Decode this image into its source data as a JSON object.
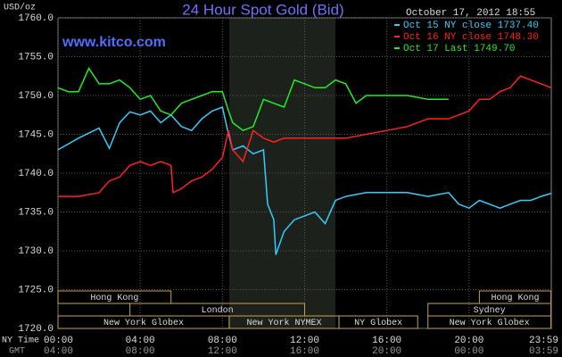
{
  "chart_data": {
    "type": "line",
    "title": "24 Hour Spot Gold (Bid)",
    "subtitle": "www.kitco.com",
    "timestamp": "October 17, 2012 18:55",
    "y_label": "USD/oz",
    "x_label": "NY Time",
    "x2_label": "GMT",
    "xlim": [
      0,
      24
    ],
    "xticks": [
      {
        "value": 0,
        "label": "00:00"
      },
      {
        "value": 4,
        "label": "04:00"
      },
      {
        "value": 8,
        "label": "08:00"
      },
      {
        "value": 12,
        "label": "12:00"
      },
      {
        "value": 16,
        "label": "16:00"
      },
      {
        "value": 20,
        "label": "20:00"
      },
      {
        "value": 23.983,
        "label": "23:59"
      }
    ],
    "x2ticks": [
      "04:00",
      "08:00",
      "12:00",
      "16:00",
      "20:00",
      "00:00",
      "03:59"
    ],
    "ylim": [
      1720,
      1760
    ],
    "yticks": [
      {
        "value": 1720,
        "label": "1720.0"
      },
      {
        "value": 1725,
        "label": "1725.0"
      },
      {
        "value": 1730,
        "label": "1730.0"
      },
      {
        "value": 1735,
        "label": "1735.0"
      },
      {
        "value": 1740,
        "label": "1740.0"
      },
      {
        "value": 1745,
        "label": "1745.0"
      },
      {
        "value": 1750,
        "label": "1750.0"
      },
      {
        "value": 1755,
        "label": "1755.0"
      },
      {
        "value": 1760,
        "label": "1760.0"
      }
    ],
    "grid": true,
    "highlight": [
      8.33,
      13.5
    ],
    "legend": "top-right",
    "series": [
      {
        "name": "Oct 15 NY close 1737.40",
        "color": "#33ccff",
        "x": [
          0,
          1,
          2,
          2.5,
          3,
          3.5,
          4,
          4.5,
          5,
          5.5,
          6,
          6.5,
          7,
          7.5,
          8,
          8.3,
          8.5,
          9,
          9.5,
          10,
          10.2,
          10.5,
          10.6,
          11,
          11.5,
          12,
          12.5,
          13,
          13.5,
          14,
          15,
          16,
          17,
          18,
          19,
          19.5,
          20,
          20.5,
          21,
          21.5,
          22,
          22.5,
          23,
          23.5,
          24
        ],
        "values": [
          1743,
          1744.5,
          1745.8,
          1743.2,
          1746.5,
          1747.9,
          1747.5,
          1748,
          1746.5,
          1747.5,
          1746,
          1745.5,
          1747,
          1748,
          1748.5,
          1745,
          1743,
          1743.5,
          1742.5,
          1743,
          1736,
          1734,
          1729.5,
          1732.5,
          1734,
          1734.5,
          1735,
          1733.5,
          1736.5,
          1737,
          1737.5,
          1737.5,
          1737.5,
          1737,
          1737.5,
          1736,
          1735.5,
          1736.5,
          1736,
          1735.5,
          1736,
          1736.5,
          1736.5,
          1737,
          1737.4
        ]
      },
      {
        "name": "Oct 16 NY close 1748.30",
        "color": "#ff2020",
        "x": [
          0,
          1,
          2,
          2.5,
          3,
          3.5,
          4,
          4.5,
          5,
          5.5,
          5.6,
          6,
          6.5,
          7,
          7.5,
          8,
          8.3,
          8.5,
          9,
          9.5,
          10,
          10.5,
          11,
          12,
          13,
          14,
          15,
          16,
          17,
          18,
          19,
          20,
          20.5,
          21,
          21.5,
          22,
          22.5,
          23,
          23.5,
          24
        ],
        "values": [
          1737,
          1737,
          1737.5,
          1739,
          1739.5,
          1741,
          1741.5,
          1741,
          1741.5,
          1741,
          1737.5,
          1738,
          1739,
          1739.5,
          1740.5,
          1742,
          1745.5,
          1743,
          1741.5,
          1745.5,
          1744.5,
          1744,
          1744.5,
          1744.5,
          1744.5,
          1744.5,
          1745,
          1745.5,
          1746,
          1747,
          1747,
          1748,
          1749.5,
          1749.5,
          1750.5,
          1751,
          1752.5,
          1752,
          1751.5,
          1751
        ]
      },
      {
        "name": "Oct 17 Last 1749.70",
        "color": "#22ee22",
        "x": [
          0,
          0.5,
          1,
          1.5,
          2,
          2.5,
          3,
          3.5,
          4,
          4.5,
          5,
          5.5,
          6,
          6.5,
          7,
          7.5,
          8,
          8.3,
          8.5,
          9,
          9.5,
          10,
          10.5,
          11,
          11.5,
          12,
          12.5,
          13,
          13.5,
          14,
          14.5,
          15,
          16,
          17,
          18,
          19
        ],
        "values": [
          1751,
          1750.5,
          1750.5,
          1753.5,
          1751.5,
          1751.5,
          1752,
          1751,
          1749.5,
          1750,
          1748,
          1747.5,
          1749,
          1749.5,
          1750,
          1750.5,
          1750.5,
          1748,
          1746.5,
          1745.5,
          1746,
          1749.5,
          1749,
          1748.5,
          1752,
          1751.5,
          1751,
          1751,
          1752,
          1751.5,
          1749,
          1750,
          1750,
          1750,
          1749.5,
          1749.5
        ]
      }
    ],
    "session_rows": [
      [
        {
          "label": "Hong Kong",
          "start": 0,
          "end": 5.5
        },
        {
          "label": "Hong Kong",
          "start": 20.5,
          "end": 23.983
        }
      ],
      [
        {
          "label": "London",
          "start": 3.5,
          "end": 12
        },
        {
          "label": "Sydney",
          "start": 18,
          "end": 23.983
        }
      ],
      [
        {
          "label": "New York Globex",
          "start": 0,
          "end": 8.33
        },
        {
          "label": "New York NYMEX",
          "start": 8.33,
          "end": 13.67
        },
        {
          "label": "NY Globex",
          "start": 13.67,
          "end": 17.5
        },
        {
          "label": "New York Globex",
          "start": 18,
          "end": 23.983
        }
      ]
    ]
  }
}
